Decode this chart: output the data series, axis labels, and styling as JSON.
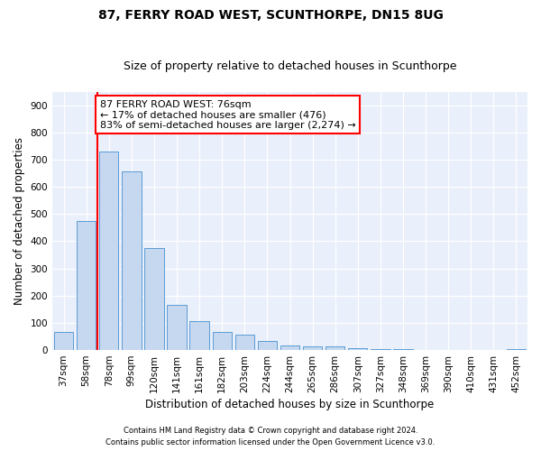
{
  "title": "87, FERRY ROAD WEST, SCUNTHORPE, DN15 8UG",
  "subtitle": "Size of property relative to detached houses in Scunthorpe",
  "xlabel": "Distribution of detached houses by size in Scunthorpe",
  "ylabel": "Number of detached properties",
  "footnote1": "Contains HM Land Registry data © Crown copyright and database right 2024.",
  "footnote2": "Contains public sector information licensed under the Open Government Licence v3.0.",
  "bin_labels": [
    "37sqm",
    "58sqm",
    "78sqm",
    "99sqm",
    "120sqm",
    "141sqm",
    "161sqm",
    "182sqm",
    "203sqm",
    "224sqm",
    "244sqm",
    "265sqm",
    "286sqm",
    "307sqm",
    "327sqm",
    "348sqm",
    "369sqm",
    "390sqm",
    "410sqm",
    "431sqm",
    "452sqm"
  ],
  "bar_values": [
    65,
    475,
    730,
    655,
    375,
    165,
    105,
    65,
    55,
    35,
    18,
    12,
    12,
    8,
    5,
    4,
    1,
    0,
    0,
    0,
    5
  ],
  "bar_color": "#c5d8f0",
  "bar_edge_color": "#5b9bd5",
  "annotation_line1": "87 FERRY ROAD WEST: 76sqm",
  "annotation_line2": "← 17% of detached houses are smaller (476)",
  "annotation_line3": "83% of semi-detached houses are larger (2,274) →",
  "red_line_x": 1.5,
  "annotation_box_color": "white",
  "annotation_box_edge_color": "red",
  "ylim": [
    0,
    950
  ],
  "yticks": [
    0,
    100,
    200,
    300,
    400,
    500,
    600,
    700,
    800,
    900
  ],
  "background_color": "#eaf0fb",
  "grid_color": "white",
  "title_fontsize": 10,
  "subtitle_fontsize": 9,
  "axis_label_fontsize": 8.5,
  "tick_fontsize": 7.5,
  "annotation_fontsize": 8
}
